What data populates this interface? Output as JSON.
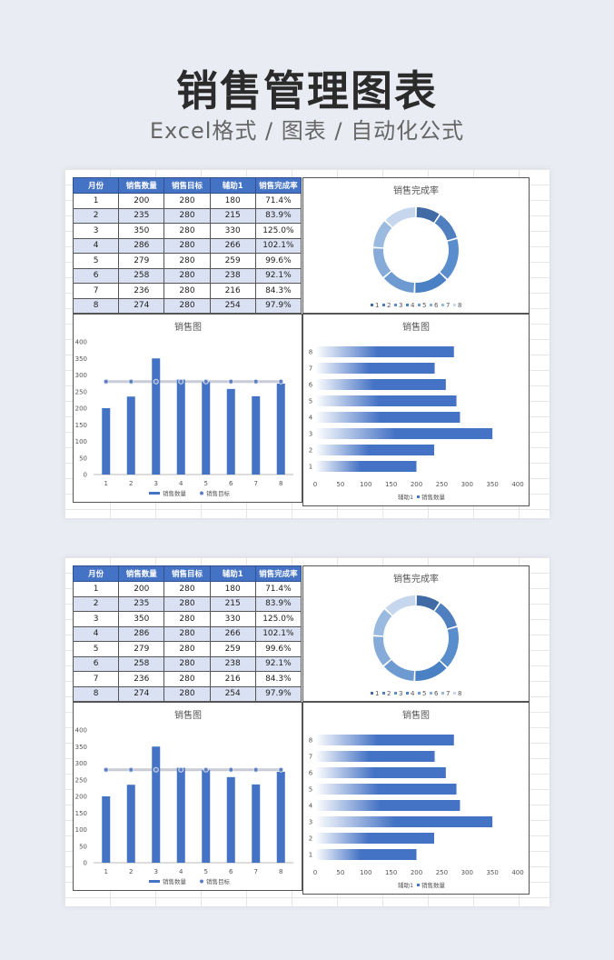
{
  "header": {
    "title": "销售管理图表",
    "subtitle": "Excel格式 / 图表 / 自动化公式"
  },
  "table": {
    "headers": [
      "月份",
      "销售数量",
      "销售目标",
      "辅助1",
      "销售完成率"
    ],
    "rows": [
      [
        "1",
        "200",
        "280",
        "180",
        "71.4%"
      ],
      [
        "2",
        "235",
        "280",
        "215",
        "83.9%"
      ],
      [
        "3",
        "350",
        "280",
        "330",
        "125.0%"
      ],
      [
        "4",
        "286",
        "280",
        "266",
        "102.1%"
      ],
      [
        "5",
        "279",
        "280",
        "259",
        "99.6%"
      ],
      [
        "6",
        "258",
        "280",
        "238",
        "92.1%"
      ],
      [
        "7",
        "236",
        "280",
        "216",
        "84.3%"
      ],
      [
        "8",
        "274",
        "280",
        "254",
        "97.9%"
      ]
    ]
  },
  "chart_data": [
    {
      "type": "pie",
      "title": "销售完成率",
      "categories": [
        "1",
        "2",
        "3",
        "4",
        "5",
        "6",
        "7",
        "8"
      ],
      "values": [
        71.4,
        83.9,
        125.0,
        102.1,
        99.6,
        92.1,
        84.3,
        97.9
      ],
      "colors": [
        "#3f6aa4",
        "#4f7fbf",
        "#5a8dcb",
        "#4a80c4",
        "#6c9ad1",
        "#86abd9",
        "#9bbae0",
        "#c6d6ec"
      ],
      "legend": "bottom"
    },
    {
      "type": "bar",
      "title": "销售图",
      "categories": [
        "1",
        "2",
        "3",
        "4",
        "5",
        "6",
        "7",
        "8"
      ],
      "series": [
        {
          "name": "销售数量",
          "values": [
            200,
            235,
            350,
            286,
            279,
            258,
            236,
            274
          ]
        },
        {
          "name": "销售目标",
          "values": [
            280,
            280,
            280,
            280,
            280,
            280,
            280,
            280
          ]
        }
      ],
      "ylim": [
        0,
        400
      ],
      "yticks": [
        0,
        50,
        100,
        150,
        200,
        250,
        300,
        350,
        400
      ],
      "legend": "bottom",
      "colors": [
        "#4472c4",
        "#5b7fc2"
      ]
    },
    {
      "type": "bar",
      "orientation": "horizontal",
      "title": "销售图",
      "categories": [
        "1",
        "2",
        "3",
        "4",
        "5",
        "6",
        "7",
        "8"
      ],
      "series": [
        {
          "name": "辅助1",
          "values": [
            180,
            215,
            330,
            266,
            259,
            238,
            216,
            254
          ]
        },
        {
          "name": "销售数量",
          "values": [
            200,
            235,
            350,
            286,
            279,
            258,
            236,
            274
          ]
        }
      ],
      "xlim": [
        0,
        400
      ],
      "xticks": [
        0,
        50,
        100,
        150,
        200,
        250,
        300,
        350,
        400
      ],
      "legend": "bottom",
      "colors": [
        "#ffffff",
        "#4472c4"
      ]
    }
  ]
}
